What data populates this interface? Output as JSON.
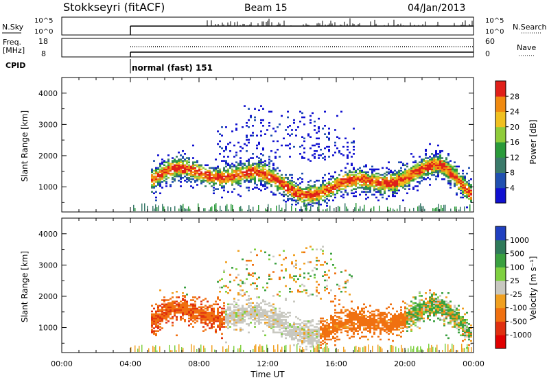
{
  "header": {
    "station": "Stokkseyri (fitACF)",
    "beam": "Beam 15",
    "date": "04/Jan/2013"
  },
  "strip_panels": {
    "nsky_label": "N.Sky",
    "nsky_ticks": [
      "10^5",
      "10^0"
    ],
    "nsearch_label": "N.Search",
    "nsearch_ticks": [
      "10^5",
      "10^0"
    ],
    "freq_label": "Freq.",
    "freq_unit": "[MHz]",
    "freq_ticks": [
      "18",
      "8"
    ],
    "nave_label": "Nave",
    "nave_ticks": [
      "60",
      "0"
    ],
    "cpid_label": "CPID",
    "cpid_value": "normal (fast) 151",
    "data_start_hour": 4
  },
  "chart_data": [
    {
      "type": "heatmap",
      "title": "",
      "xlabel": "Time UT",
      "ylabel": "Slant Range [km]",
      "xlim": [
        0,
        24
      ],
      "ylim": [
        200,
        4500
      ],
      "x_tick_labels": [
        "00:00",
        "04:00",
        "08:00",
        "12:00",
        "16:00",
        "20:00",
        "00:00"
      ],
      "y_tick_labels": [
        "1000",
        "2000",
        "3000",
        "4000"
      ],
      "colorbar": {
        "label": "Power [dB]",
        "tick_labels": [
          "4",
          "8",
          "12",
          "16",
          "20",
          "24",
          "28"
        ],
        "colors": [
          "#1010d0",
          "#2050b0",
          "#3a7a6a",
          "#2a9a3a",
          "#8fcc3a",
          "#f0c020",
          "#f08a10",
          "#e0201a"
        ]
      },
      "echo_region": {
        "start_hour": 5.2,
        "end_hour": 24,
        "main_band_range_km": [
          800,
          1800
        ],
        "peak_power_dB": 30
      }
    },
    {
      "type": "heatmap",
      "title": "",
      "xlabel": "Time UT",
      "ylabel": "Slant Range [km]",
      "xlim": [
        0,
        24
      ],
      "ylim": [
        200,
        4500
      ],
      "x_tick_labels": [
        "00:00",
        "04:00",
        "08:00",
        "12:00",
        "16:00",
        "20:00",
        "00:00"
      ],
      "y_tick_labels": [
        "1000",
        "2000",
        "3000",
        "4000"
      ],
      "colorbar": {
        "label": "Velocity [m s⁻¹]",
        "tick_labels": [
          "1000",
          "500",
          "100",
          "25",
          "-25",
          "-100",
          "-500",
          "-1000"
        ],
        "colors": [
          "#2040c0",
          "#2f7a5a",
          "#3aa040",
          "#7fd040",
          "#c8c8c0",
          "#f0a020",
          "#f07010",
          "#e03010",
          "#e00000"
        ]
      },
      "echo_region": {
        "start_hour": 5.2,
        "end_hour": 24,
        "main_band_range_km": [
          800,
          1800
        ]
      }
    }
  ]
}
